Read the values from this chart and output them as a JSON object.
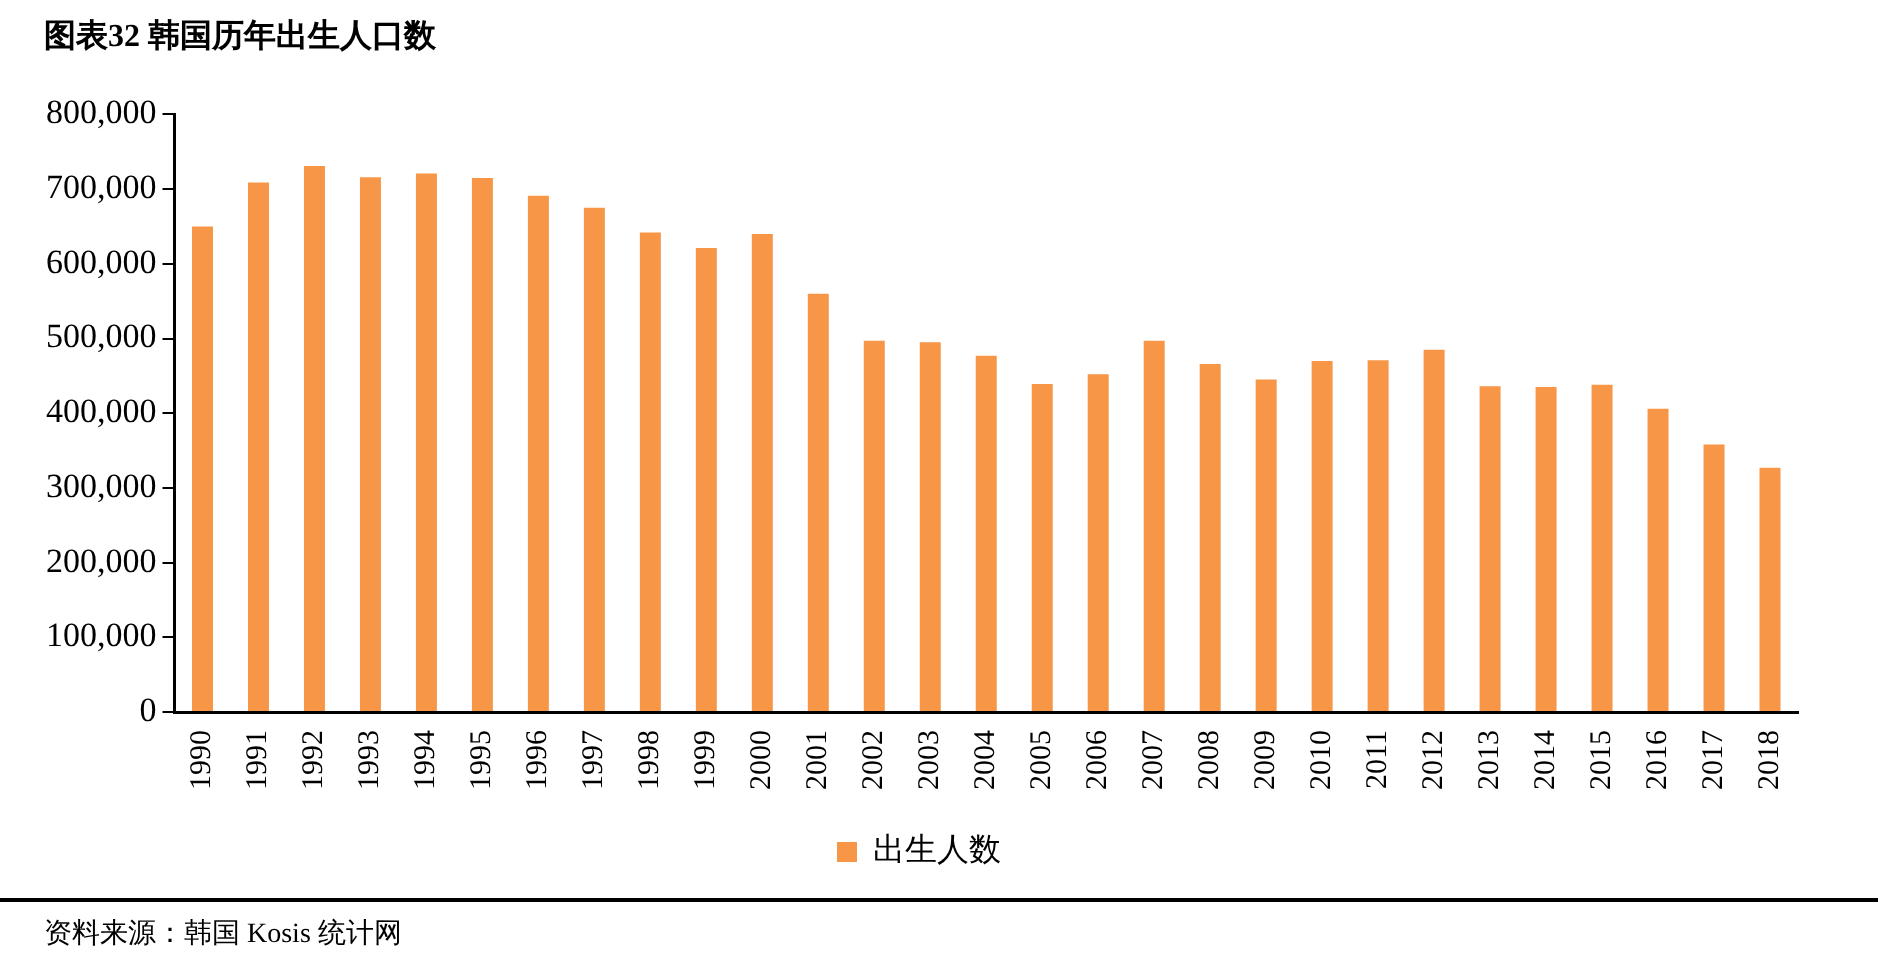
{
  "chart_data": {
    "type": "bar",
    "title": "图表32 韩国历年出生人口数",
    "categories": [
      "1990",
      "1991",
      "1992",
      "1993",
      "1994",
      "1995",
      "1996",
      "1997",
      "1998",
      "1999",
      "2000",
      "2001",
      "2002",
      "2003",
      "2004",
      "2005",
      "2006",
      "2007",
      "2008",
      "2009",
      "2010",
      "2011",
      "2012",
      "2013",
      "2014",
      "2015",
      "2016",
      "2017",
      "2018"
    ],
    "series": [
      {
        "name": "出生人数",
        "color": "#f79646",
        "values": [
          650000,
          709000,
          731000,
          716000,
          721000,
          715000,
          691000,
          675000,
          642000,
          621000,
          640000,
          560000,
          497000,
          495000,
          477000,
          439000,
          452000,
          497000,
          466000,
          445000,
          470000,
          471000,
          485000,
          436000,
          435000,
          438000,
          406000,
          358000,
          327000
        ]
      }
    ],
    "ylim": [
      0,
      800000
    ],
    "yticks": [
      {
        "value": 0,
        "label": "0"
      },
      {
        "value": 100000,
        "label": "100,000"
      },
      {
        "value": 200000,
        "label": "200,000"
      },
      {
        "value": 300000,
        "label": "300,000"
      },
      {
        "value": 400000,
        "label": "400,000"
      },
      {
        "value": 500000,
        "label": "500,000"
      },
      {
        "value": 600000,
        "label": "600,000"
      },
      {
        "value": 700000,
        "label": "700,000"
      },
      {
        "value": 800000,
        "label": "800,000"
      }
    ],
    "grid": false,
    "legend": "bottom",
    "annotations": [
      "资料来源：韩国 Kosis 统计网"
    ]
  }
}
